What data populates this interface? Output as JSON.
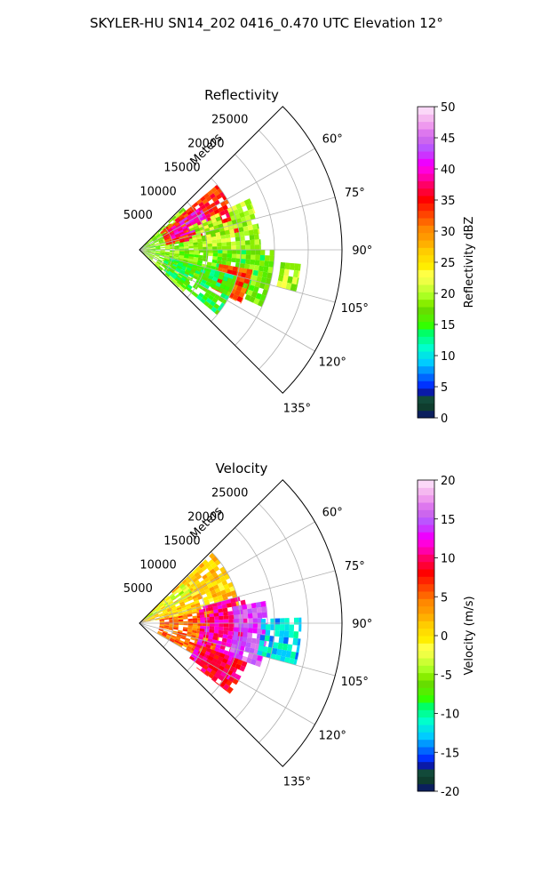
{
  "figure": {
    "suptitle": "SKYLER-HU  SN14_202  0416_0.470 UTC Elevation 12°"
  },
  "chart_data": [
    {
      "type": "polar-sector-heatmap",
      "title": "Reflectivity",
      "radial_label": "Meters",
      "radial_ticks": [
        5000,
        10000,
        15000,
        20000,
        25000
      ],
      "azimuth_ticks": [
        "60°",
        "75°",
        "90°",
        "105°",
        "120°",
        "135°"
      ],
      "azimuth_tick_values": [
        60,
        75,
        90,
        105,
        120,
        135
      ],
      "azimuth_range": [
        45,
        135
      ],
      "range_max": 30000,
      "grid": true,
      "colorbar": {
        "label": "Reflectivity dBZ",
        "vmin": 0,
        "vmax": 50,
        "ticks": [
          0,
          5,
          10,
          15,
          20,
          25,
          30,
          35,
          40,
          45,
          50
        ],
        "colors": [
          "#0b1f5e",
          "#0f3d2e",
          "#124a3a",
          "#0a1aa8",
          "#0033ff",
          "#0066ff",
          "#0099ff",
          "#00ccff",
          "#00e5e5",
          "#00ffcc",
          "#00ff99",
          "#00ff66",
          "#33ff00",
          "#55ee00",
          "#66dd00",
          "#88ee00",
          "#aaff22",
          "#ccff33",
          "#eeff44",
          "#ffff44",
          "#ffee00",
          "#ffdd00",
          "#ffcc00",
          "#ffb000",
          "#ff9900",
          "#ff8800",
          "#ff6600",
          "#ff4400",
          "#ff2200",
          "#ff0000",
          "#ff0033",
          "#ff0066",
          "#ff00aa",
          "#ff00dd",
          "#ee00ff",
          "#cc33ff",
          "#bb55ff",
          "#cc66ee",
          "#dd77ee",
          "#ee99ee",
          "#f5b8f0",
          "#fbd8f8"
        ]
      },
      "echo_regions": [
        {
          "az_min": 46,
          "az_max": 134,
          "r_min": 300,
          "r_max": 9000,
          "value": 18
        },
        {
          "az_min": 50,
          "az_max": 80,
          "r_min": 4000,
          "r_max": 15000,
          "value": 34
        },
        {
          "az_min": 55,
          "az_max": 72,
          "r_min": 5000,
          "r_max": 11000,
          "value": 40
        },
        {
          "az_min": 65,
          "az_max": 95,
          "r_min": 8000,
          "r_max": 18000,
          "value": 20
        },
        {
          "az_min": 90,
          "az_max": 115,
          "r_min": 6000,
          "r_max": 20000,
          "value": 17
        },
        {
          "az_min": 100,
          "az_max": 118,
          "r_min": 12000,
          "r_max": 17000,
          "value": 33
        },
        {
          "az_min": 105,
          "az_max": 130,
          "r_min": 4000,
          "r_max": 15000,
          "value": 15
        },
        {
          "az_min": 95,
          "az_max": 105,
          "r_min": 21000,
          "r_max": 24000,
          "value": 20
        }
      ]
    },
    {
      "type": "polar-sector-heatmap",
      "title": "Velocity",
      "radial_label": "Meters",
      "radial_ticks": [
        5000,
        10000,
        15000,
        20000,
        25000
      ],
      "azimuth_ticks": [
        "60°",
        "75°",
        "90°",
        "105°",
        "120°",
        "135°"
      ],
      "azimuth_tick_values": [
        60,
        75,
        90,
        105,
        120,
        135
      ],
      "azimuth_range": [
        45,
        135
      ],
      "range_max": 30000,
      "grid": true,
      "colorbar": {
        "label": "Velocity (m/s)",
        "vmin": -20,
        "vmax": 20,
        "ticks": [
          -20,
          -15,
          -10,
          -5,
          0,
          5,
          10,
          15,
          20
        ],
        "colors": [
          "#0b1f5e",
          "#0f3d2e",
          "#124a3a",
          "#0a1aa8",
          "#0033ff",
          "#0066ff",
          "#0099ff",
          "#00ccff",
          "#00e5e5",
          "#00ffcc",
          "#00ff99",
          "#00ff66",
          "#33ff00",
          "#55ee00",
          "#66dd00",
          "#88ee00",
          "#aaff22",
          "#ccff33",
          "#eeff44",
          "#ffff44",
          "#ffee00",
          "#ffdd00",
          "#ffcc00",
          "#ffb000",
          "#ff9900",
          "#ff8800",
          "#ff6600",
          "#ff4400",
          "#ff2200",
          "#ff0000",
          "#ff0033",
          "#ff0066",
          "#ff00aa",
          "#ff00dd",
          "#ee00ff",
          "#cc33ff",
          "#bb55ff",
          "#cc66ee",
          "#dd77ee",
          "#ee99ee",
          "#f5b8f0",
          "#fbd8f8"
        ]
      },
      "echo_regions": [
        {
          "az_min": 46,
          "az_max": 80,
          "r_min": 300,
          "r_max": 15000,
          "value": 1
        },
        {
          "az_min": 48,
          "az_max": 62,
          "r_min": 1000,
          "r_max": 9000,
          "value": -3
        },
        {
          "az_min": 80,
          "az_max": 120,
          "r_min": 3000,
          "r_max": 12000,
          "value": 5
        },
        {
          "az_min": 75,
          "az_max": 125,
          "r_min": 9000,
          "r_max": 16000,
          "value": 11
        },
        {
          "az_min": 80,
          "az_max": 110,
          "r_min": 14000,
          "r_max": 19000,
          "value": 15
        },
        {
          "az_min": 88,
          "az_max": 105,
          "r_min": 18000,
          "r_max": 24000,
          "value": -12
        },
        {
          "az_min": 110,
          "az_max": 128,
          "r_min": 10000,
          "r_max": 17000,
          "value": 9
        }
      ]
    }
  ]
}
